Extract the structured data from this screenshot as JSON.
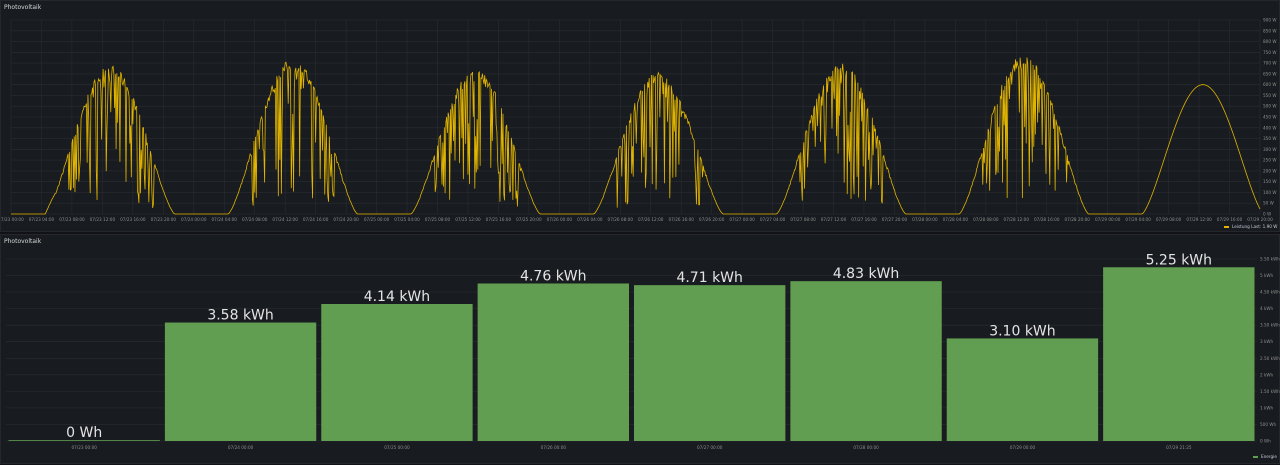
{
  "colors": {
    "line": "#e0b400",
    "bar": "#629e51",
    "background": "#181b1f",
    "grid": "#2a2d33"
  },
  "chart_data": [
    {
      "type": "line",
      "title": "Photovoltaik",
      "x_ticks": [
        "07/23 00:00",
        "07/23 04:00",
        "07/23 08:00",
        "07/23 12:00",
        "07/23 16:00",
        "07/23 20:00",
        "07/24 00:00",
        "07/24 04:00",
        "07/24 08:00",
        "07/24 12:00",
        "07/24 16:00",
        "07/24 20:00",
        "07/25 00:00",
        "07/25 04:00",
        "07/25 08:00",
        "07/25 12:00",
        "07/25 16:00",
        "07/25 20:00",
        "07/26 00:00",
        "07/26 04:00",
        "07/26 08:00",
        "07/26 12:00",
        "07/26 16:00",
        "07/26 20:00",
        "07/27 00:00",
        "07/27 04:00",
        "07/27 08:00",
        "07/27 12:00",
        "07/27 16:00",
        "07/27 20:00",
        "07/28 00:00",
        "07/28 04:00",
        "07/28 08:00",
        "07/28 12:00",
        "07/28 16:00",
        "07/28 20:00",
        "07/29 00:00",
        "07/29 04:00",
        "07/29 08:00",
        "07/29 12:00",
        "07/29 16:00",
        "07/29 20:00"
      ],
      "y_ticks": [
        "0 W",
        "50 W",
        "100 W",
        "150 W",
        "200 W",
        "250 W",
        "300 W",
        "350 W",
        "400 W",
        "450 W",
        "500 W",
        "550 W",
        "600 W",
        "650 W",
        "700 W",
        "750 W",
        "800 W",
        "850 W",
        "900 W"
      ],
      "ylim": [
        0,
        900
      ],
      "x_range_hours": [
        0,
        164
      ],
      "series": [
        {
          "name": "Leistung",
          "legend_text": "Leistung  Last: 1.90 W"
        }
      ],
      "days": [
        {
          "start_hour": 4.5,
          "end_hour": 21.5,
          "peak": 690,
          "spiky": true,
          "bump": 150
        },
        {
          "start_hour": 28.5,
          "end_hour": 45.5,
          "peak": 720,
          "spiky": true,
          "bump": 0
        },
        {
          "start_hour": 52.5,
          "end_hour": 69.5,
          "peak": 670,
          "spiky": true,
          "bump": 0
        },
        {
          "start_hour": 76.5,
          "end_hour": 93.5,
          "peak": 660,
          "spiky": true,
          "bump": 0
        },
        {
          "start_hour": 100.5,
          "end_hour": 117.5,
          "peak": 700,
          "spiky": true,
          "bump": 0
        },
        {
          "start_hour": 124.5,
          "end_hour": 141.5,
          "peak": 740,
          "spiky": true,
          "bump": 60
        },
        {
          "start_hour": 148.5,
          "end_hour": 164.5,
          "peak": 600,
          "spiky": false,
          "bump": 0
        }
      ]
    },
    {
      "type": "bar",
      "title": "Photovoltaik",
      "categories": [
        "07/23 00:00",
        "07/24 00:00",
        "07/25 00:00",
        "07/26 00:00",
        "07/27 00:00",
        "07/28 00:00",
        "07/29 00:00",
        "07/29 21:25"
      ],
      "values": [
        0,
        3.58,
        4.14,
        4.76,
        4.71,
        4.83,
        3.1,
        5.25
      ],
      "value_labels": [
        "0 Wh",
        "3.58 kWh",
        "4.14 kWh",
        "4.76 kWh",
        "4.71 kWh",
        "4.83 kWh",
        "3.10 kWh",
        "5.25 kWh"
      ],
      "unit": "kWh",
      "ylim": [
        0,
        5.5
      ],
      "y_ticks": [
        "0 Wh",
        "500 Wh",
        "1 kWh",
        "1.50 kWh",
        "2 kWh",
        "2.50 kWh",
        "3 kWh",
        "3.50 kWh",
        "4 kWh",
        "4.50 kWh",
        "5 kWh",
        "5.50 kWh"
      ],
      "series": [
        {
          "name": "Energie"
        }
      ]
    }
  ]
}
